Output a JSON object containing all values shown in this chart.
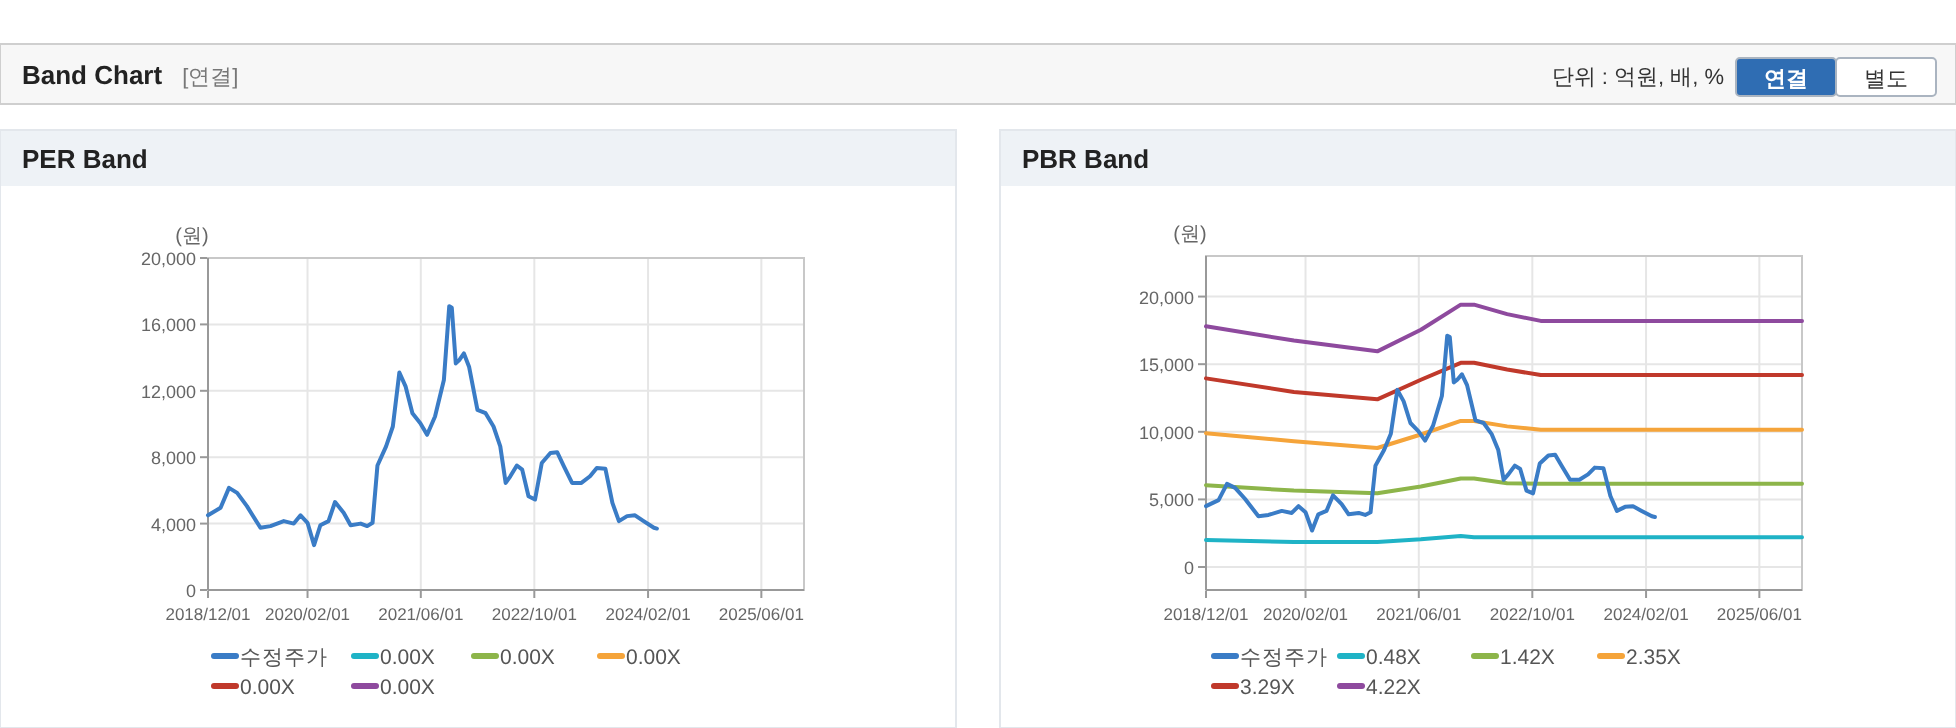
{
  "chart_data": [
    {
      "type": "other",
      "title": "Band Chart",
      "annotations": [
        "[연결]",
        "단위 : 억원, 배, %",
        "연결",
        "별도"
      ]
    },
    {
      "type": "line",
      "title": "PER Band",
      "ylabel": "(원)",
      "grid": true,
      "legend": "bottom",
      "xlim": [
        "2018-12-01",
        "2025-12-01"
      ],
      "ylim": [
        0,
        20000
      ],
      "xticks": [
        {
          "value": "2018-12-01",
          "label": "2018/12/01"
        },
        {
          "value": "2020-02-01",
          "label": "2020/02/01"
        },
        {
          "value": "2021-06-01",
          "label": "2021/06/01"
        },
        {
          "value": "2022-10-01",
          "label": "2022/10/01"
        },
        {
          "value": "2024-02-01",
          "label": "2024/02/01"
        },
        {
          "value": "2025-06-01",
          "label": "2025/06/01"
        }
      ],
      "yticks": [
        0,
        {
          "value": 4000,
          "label": "4,000"
        },
        {
          "value": 8000,
          "label": "8,000"
        },
        {
          "value": 12000,
          "label": "12,000"
        },
        {
          "value": 16000,
          "label": "16,000"
        },
        {
          "value": 20000,
          "label": "20,000"
        }
      ],
      "series": [
        {
          "name": "수정주가",
          "color": "#3a7cc6",
          "x": [
            "2018-12-01",
            "2019-01-24",
            "2019-03-01",
            "2019-04-05",
            "2019-05-17",
            "2019-07-14",
            "2019-08-26",
            "2019-10-22",
            "2019-12-04",
            "2020-01-02",
            "2020-02-01",
            "2020-02-29",
            "2020-03-27",
            "2020-05-01",
            "2020-05-29",
            "2020-07-05",
            "2020-08-04",
            "2020-09-16",
            "2020-10-14",
            "2020-11-06",
            "2020-11-27",
            "2021-01-03",
            "2021-02-01",
            "2021-03-01",
            "2021-03-28",
            "2021-04-26",
            "2021-05-30",
            "2021-06-28",
            "2021-08-01",
            "2021-09-08",
            "2021-10-01",
            "2021-10-12",
            "2021-10-29",
            "2021-11-13",
            "2021-12-03",
            "2021-12-25",
            "2022-01-30",
            "2022-03-06",
            "2022-04-09",
            "2022-05-08",
            "2022-05-31",
            "2022-06-20",
            "2022-07-18",
            "2022-08-10",
            "2022-09-06",
            "2022-10-04",
            "2022-11-02",
            "2022-12-09",
            "2023-01-07",
            "2023-02-05",
            "2023-03-12",
            "2023-04-21",
            "2023-05-28",
            "2023-06-26",
            "2023-08-02",
            "2023-09-01",
            "2023-09-29",
            "2023-11-03",
            "2023-12-07",
            "2024-01-13",
            "2024-02-26",
            "2024-03-10"
          ],
          "values": [
            4500,
            4950,
            6150,
            5850,
            5050,
            3750,
            3850,
            4150,
            4000,
            4500,
            4050,
            2700,
            3900,
            4150,
            5300,
            4650,
            3900,
            4000,
            3850,
            4050,
            7500,
            8650,
            9850,
            13100,
            12250,
            10650,
            10050,
            9350,
            10450,
            12650,
            17100,
            17000,
            13650,
            13850,
            14250,
            13450,
            10850,
            10650,
            9850,
            8650,
            6450,
            6850,
            7500,
            7250,
            5650,
            5450,
            7650,
            8250,
            8300,
            7450,
            6450,
            6450,
            6850,
            7350,
            7300,
            5250,
            4150,
            4450,
            4500,
            4150,
            3750,
            3700
          ]
        },
        {
          "name": "0.00X",
          "color": "#1fb3c6"
        },
        {
          "name": "0.00X",
          "color": "#8db54a"
        },
        {
          "name": "0.00X",
          "color": "#f5a43a"
        },
        {
          "name": "0.00X",
          "color": "#c0392b"
        },
        {
          "name": "0.00X",
          "color": "#8e4a9e"
        }
      ]
    },
    {
      "type": "line",
      "title": "PBR Band",
      "ylabel": "(원)",
      "grid": true,
      "legend": "bottom",
      "xlim": [
        "2018-12-01",
        "2025-12-01"
      ],
      "ylim": [
        -1700,
        23000
      ],
      "xticks": [
        {
          "value": "2018-12-01",
          "label": "2018/12/01"
        },
        {
          "value": "2020-02-01",
          "label": "2020/02/01"
        },
        {
          "value": "2021-06-01",
          "label": "2021/06/01"
        },
        {
          "value": "2022-10-01",
          "label": "2022/10/01"
        },
        {
          "value": "2024-02-01",
          "label": "2024/02/01"
        },
        {
          "value": "2025-06-01",
          "label": "2025/06/01"
        }
      ],
      "yticks": [
        0,
        {
          "value": 5000,
          "label": "5,000"
        },
        {
          "value": 10000,
          "label": "10,000"
        },
        {
          "value": 15000,
          "label": "15,000"
        },
        {
          "value": 20000,
          "label": "20,000"
        }
      ],
      "series": [
        {
          "name": "수정주가",
          "color": "#3a7cc6",
          "x": [
            "2018-12-01",
            "2019-01-24",
            "2019-03-01",
            "2019-04-05",
            "2019-05-17",
            "2019-07-14",
            "2019-08-26",
            "2019-10-22",
            "2019-12-04",
            "2020-01-02",
            "2020-02-01",
            "2020-02-29",
            "2020-03-27",
            "2020-05-01",
            "2020-05-29",
            "2020-07-05",
            "2020-08-04",
            "2020-09-16",
            "2020-10-14",
            "2020-11-06",
            "2020-11-27",
            "2021-01-03",
            "2021-02-01",
            "2021-03-01",
            "2021-03-28",
            "2021-04-26",
            "2021-05-30",
            "2021-06-28",
            "2021-08-01",
            "2021-09-08",
            "2021-10-01",
            "2021-10-12",
            "2021-10-29",
            "2021-11-13",
            "2021-12-03",
            "2021-12-25",
            "2022-01-30",
            "2022-03-06",
            "2022-04-09",
            "2022-05-08",
            "2022-05-31",
            "2022-06-20",
            "2022-07-18",
            "2022-08-10",
            "2022-09-06",
            "2022-10-04",
            "2022-11-02",
            "2022-12-09",
            "2023-01-07",
            "2023-02-05",
            "2023-03-12",
            "2023-04-21",
            "2023-05-28",
            "2023-06-26",
            "2023-08-02",
            "2023-09-01",
            "2023-09-29",
            "2023-11-03",
            "2023-12-07",
            "2024-01-13",
            "2024-02-26",
            "2024-03-10"
          ],
          "values": [
            4500,
            4950,
            6150,
            5850,
            5050,
            3750,
            3850,
            4150,
            4000,
            4500,
            4050,
            2700,
            3900,
            4150,
            5300,
            4650,
            3900,
            4000,
            3850,
            4050,
            7500,
            8650,
            9850,
            13100,
            12250,
            10650,
            10050,
            9350,
            10450,
            12650,
            17100,
            17000,
            13650,
            13850,
            14250,
            13450,
            10850,
            10650,
            9850,
            8650,
            6450,
            6850,
            7500,
            7250,
            5650,
            5450,
            7650,
            8250,
            8300,
            7450,
            6450,
            6450,
            6850,
            7350,
            7300,
            5250,
            4150,
            4450,
            4500,
            4150,
            3750,
            3700
          ]
        },
        {
          "name": "0.48X",
          "color": "#1fb3c6",
          "x": [
            "2018-12-01",
            "2019-12-13",
            "2020-12-05",
            "2021-06-10",
            "2021-11-28",
            "2022-01-24",
            "2025-12-01"
          ],
          "values": [
            2000,
            1850,
            1850,
            2050,
            2300,
            2200,
            2200
          ]
        },
        {
          "name": "1.42X",
          "color": "#8db54a",
          "x": [
            "2018-12-01",
            "2019-12-13",
            "2020-12-05",
            "2021-06-10",
            "2021-11-28",
            "2022-01-24",
            "2022-06-15",
            "2022-11-06",
            "2025-12-01"
          ],
          "values": [
            6050,
            5650,
            5450,
            5950,
            6550,
            6550,
            6200,
            6150,
            6150
          ]
        },
        {
          "name": "2.35X",
          "color": "#f5a43a",
          "x": [
            "2018-12-01",
            "2019-12-13",
            "2020-12-05",
            "2021-06-10",
            "2021-11-28",
            "2022-01-24",
            "2022-06-15",
            "2022-11-06",
            "2025-12-01"
          ],
          "values": [
            9900,
            9300,
            8800,
            9800,
            10800,
            10800,
            10400,
            10150,
            10150
          ]
        },
        {
          "name": "3.29X",
          "color": "#c0392b",
          "x": [
            "2018-12-01",
            "2019-12-13",
            "2020-12-05",
            "2021-06-10",
            "2021-11-28",
            "2022-01-24",
            "2022-06-15",
            "2022-11-06",
            "2025-12-01"
          ],
          "values": [
            13950,
            12950,
            12400,
            13850,
            15100,
            15100,
            14600,
            14200,
            14200
          ]
        },
        {
          "name": "4.22X",
          "color": "#8e4a9e",
          "x": [
            "2018-12-01",
            "2019-12-13",
            "2020-12-05",
            "2021-06-10",
            "2021-11-28",
            "2022-01-24",
            "2022-06-15",
            "2022-11-06",
            "2025-12-01"
          ],
          "values": [
            17800,
            16750,
            15950,
            17550,
            19400,
            19400,
            18700,
            18200,
            18200
          ]
        }
      ]
    }
  ]
}
